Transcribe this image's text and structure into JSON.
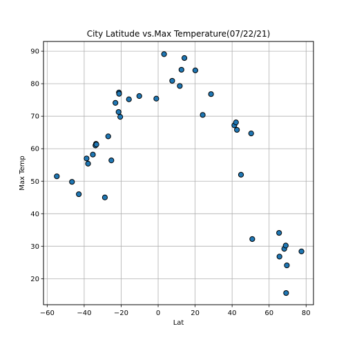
{
  "chart_data": {
    "type": "scatter",
    "title": "City Latitude vs.Max Temperature(07/22/21)",
    "xlabel": "Lat",
    "ylabel": "Max Temp",
    "xlim": [
      -62,
      84
    ],
    "ylim": [
      12,
      93
    ],
    "xticks": [
      -60,
      -40,
      -20,
      0,
      20,
      40,
      60,
      80
    ],
    "yticks": [
      20,
      30,
      40,
      50,
      60,
      70,
      80,
      90
    ],
    "grid": true,
    "marker_color": "#1f77b4",
    "marker_edge": "#000000",
    "points": [
      {
        "x": -54.8,
        "y": 51.5
      },
      {
        "x": -46.6,
        "y": 49.8
      },
      {
        "x": -42.9,
        "y": 46.0
      },
      {
        "x": -38.7,
        "y": 57.0
      },
      {
        "x": -37.9,
        "y": 55.4
      },
      {
        "x": -35.3,
        "y": 58.2
      },
      {
        "x": -33.9,
        "y": 61.0
      },
      {
        "x": -33.6,
        "y": 61.5
      },
      {
        "x": -33.4,
        "y": 61.3
      },
      {
        "x": -28.8,
        "y": 45.0
      },
      {
        "x": -27.0,
        "y": 63.8
      },
      {
        "x": -25.3,
        "y": 56.4
      },
      {
        "x": -23.1,
        "y": 74.1
      },
      {
        "x": -21.4,
        "y": 71.3
      },
      {
        "x": -21.2,
        "y": 77.3
      },
      {
        "x": -21.1,
        "y": 76.9
      },
      {
        "x": -20.5,
        "y": 69.8
      },
      {
        "x": -15.8,
        "y": 75.2
      },
      {
        "x": -10.2,
        "y": 76.2
      },
      {
        "x": -1.0,
        "y": 75.4
      },
      {
        "x": 3.2,
        "y": 89.1
      },
      {
        "x": 7.6,
        "y": 80.9
      },
      {
        "x": 11.7,
        "y": 79.3
      },
      {
        "x": 12.6,
        "y": 84.3
      },
      {
        "x": 14.2,
        "y": 87.9
      },
      {
        "x": 20.1,
        "y": 84.1
      },
      {
        "x": 24.1,
        "y": 70.4
      },
      {
        "x": 28.6,
        "y": 76.8
      },
      {
        "x": 41.2,
        "y": 67.2
      },
      {
        "x": 42.1,
        "y": 68.1
      },
      {
        "x": 42.6,
        "y": 65.8
      },
      {
        "x": 44.8,
        "y": 52.0
      },
      {
        "x": 50.3,
        "y": 64.7
      },
      {
        "x": 50.9,
        "y": 32.2
      },
      {
        "x": 65.4,
        "y": 34.1
      },
      {
        "x": 65.6,
        "y": 26.8
      },
      {
        "x": 68.2,
        "y": 29.2
      },
      {
        "x": 69.0,
        "y": 30.2
      },
      {
        "x": 69.2,
        "y": 15.6
      },
      {
        "x": 69.6,
        "y": 24.1
      },
      {
        "x": 77.5,
        "y": 28.4
      }
    ]
  }
}
